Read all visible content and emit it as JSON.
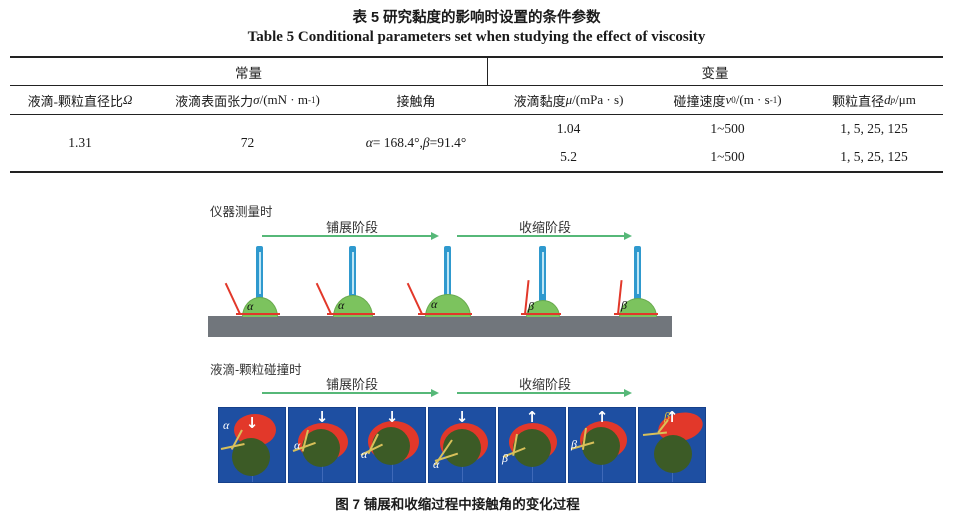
{
  "table": {
    "title_zh": "表 5  研究黏度的影响时设置的条件参数",
    "title_en": "Table 5  Conditional parameters set when studying the effect of viscosity",
    "group_left": "常量",
    "group_right": "变量",
    "headers": [
      "液滴-颗粒直径比<i>Ω</i>",
      "液滴表面张力<i>σ</i> /(mN · m<sup>-1</sup>)",
      "接触角",
      "液滴黏度 <i>μ</i> /(mPa · s)",
      "碰撞速度 <i>v</i><sub>0</sub> /(m · s<sup>-1</sup>)",
      "颗粒直径<i>d</i><sub><i>p</i></sub> /μm"
    ],
    "constants": {
      "diameter_ratio": "1.31",
      "surface_tension": "72",
      "contact_angle": "<i>α</i>= 168.4°, <i>β</i> =91.4°"
    },
    "variable_rows": [
      {
        "viscosity": "1.04",
        "velocity": "1~500",
        "diameters": "1, 5, 25, 125"
      },
      {
        "viscosity": "5.2",
        "velocity": "1~500",
        "diameters": "1, 5, 25, 125"
      }
    ]
  },
  "figure": {
    "section_instrument": {
      "label": "仪器测量时",
      "stage_spread": "铺展阶段",
      "stage_contract": "收缩阶段",
      "droplet_labels": [
        "α",
        "α",
        "α",
        "β",
        "β"
      ]
    },
    "section_collision": {
      "label": "液滴-颗粒碰撞时",
      "stage_spread": "铺展阶段",
      "stage_contract": "收缩阶段",
      "panel_labels": [
        "α",
        "α",
        "α",
        "α",
        "β",
        "β",
        "β"
      ],
      "arrow_glyphs": [
        "↓",
        "↓",
        "↓",
        "↓",
        "↑",
        "↑",
        "↑"
      ]
    },
    "caption": "图 7  铺展和收缩过程中接触角的变化过程"
  },
  "colors": {
    "stage_arrow_green": "#56b878",
    "substrate_gray": "#71767c",
    "droplet_green": "#7cc35e",
    "needle_blue": "#2f99ce",
    "angle_red": "#e2382a",
    "panel_blue": "#1e4fa2",
    "particle_dark_green": "#3c5b26",
    "angle_yellow": "#d8c05a"
  }
}
